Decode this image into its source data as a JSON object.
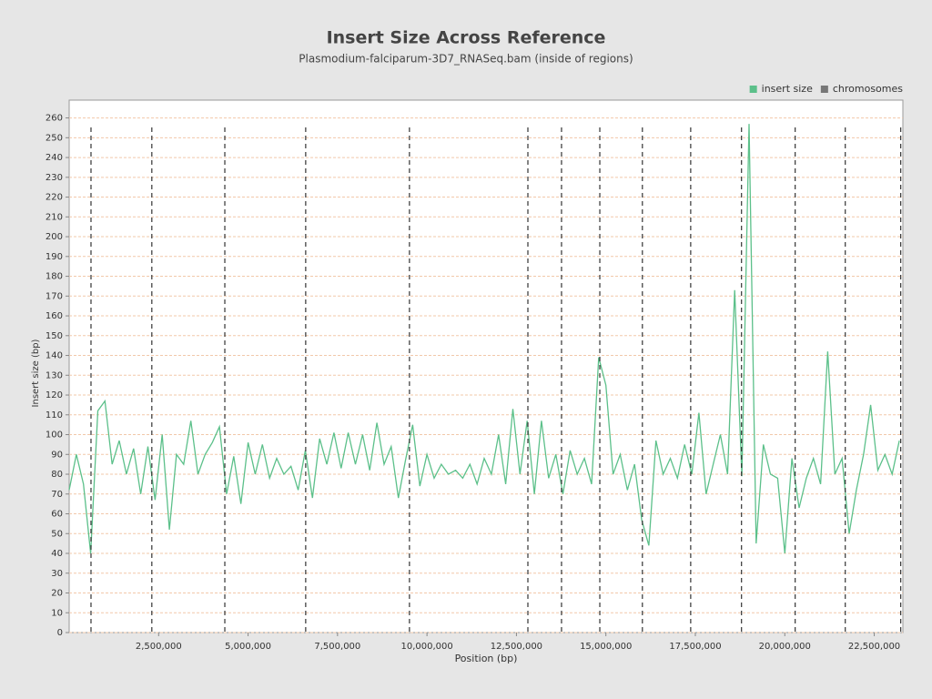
{
  "chart_data": {
    "type": "line",
    "title": "Insert Size Across Reference",
    "subtitle": "Plasmodium-falciparum-3D7_RNASeq.bam (inside of regions)",
    "x_label": "Position (bp)",
    "y_label": "Insert size (bp)",
    "x": [
      0,
      200000,
      400000,
      600000,
      800000,
      1000000,
      1200000,
      1400000,
      1600000,
      1800000,
      2000000,
      2200000,
      2400000,
      2600000,
      2800000,
      3000000,
      3200000,
      3400000,
      3600000,
      3800000,
      4000000,
      4200000,
      4400000,
      4600000,
      4800000,
      5000000,
      5200000,
      5400000,
      5600000,
      5800000,
      6000000,
      6200000,
      6400000,
      6600000,
      6800000,
      7000000,
      7200000,
      7400000,
      7600000,
      7800000,
      8000000,
      8200000,
      8400000,
      8600000,
      8800000,
      9000000,
      9200000,
      9400000,
      9600000,
      9800000,
      10000000,
      10200000,
      10400000,
      10600000,
      10800000,
      11000000,
      11200000,
      11400000,
      11600000,
      11800000,
      12000000,
      12200000,
      12400000,
      12600000,
      12800000,
      13000000,
      13200000,
      13400000,
      13600000,
      13800000,
      14000000,
      14200000,
      14400000,
      14600000,
      14800000,
      15000000,
      15200000,
      15400000,
      15600000,
      15800000,
      16000000,
      16200000,
      16400000,
      16600000,
      16800000,
      17000000,
      17200000,
      17400000,
      17600000,
      17800000,
      18000000,
      18200000,
      18400000,
      18600000,
      18800000,
      19000000,
      19200000,
      19400000,
      19600000,
      19800000,
      20000000,
      20200000,
      20400000,
      20600000,
      20800000,
      21000000,
      21200000,
      21400000,
      21600000,
      21800000,
      22000000,
      22200000,
      22400000,
      22600000,
      22800000,
      23000000,
      23200000
    ],
    "series": [
      {
        "name": "insert size",
        "color": "#5cc08a",
        "values": [
          72,
          90,
          75,
          40,
          112,
          117,
          85,
          97,
          80,
          93,
          70,
          94,
          67,
          100,
          52,
          90,
          85,
          107,
          80,
          90,
          96,
          104,
          70,
          89,
          65,
          96,
          80,
          95,
          78,
          88,
          80,
          84,
          72,
          92,
          68,
          98,
          85,
          101,
          83,
          101,
          85,
          100,
          82,
          106,
          85,
          94,
          68,
          87,
          105,
          74,
          90,
          78,
          85,
          80,
          82,
          78,
          85,
          75,
          88,
          80,
          100,
          75,
          113,
          80,
          107,
          70,
          107,
          78,
          90,
          70,
          92,
          80,
          88,
          75,
          139,
          125,
          80,
          90,
          72,
          85,
          57,
          44,
          97,
          80,
          88,
          78,
          95,
          80,
          111,
          70,
          85,
          100,
          80,
          173,
          79,
          257,
          45,
          95,
          80,
          78,
          40,
          88,
          63,
          78,
          88,
          75,
          142,
          80,
          88,
          50,
          72,
          90,
          115,
          82,
          90,
          80,
          97
        ]
      },
      {
        "name": "chromosomes",
        "color": "#333333",
        "positions": [
          610000,
          2310000,
          4350000,
          6610000,
          9510000,
          12820000,
          13760000,
          14830000,
          16020000,
          17370000,
          18790000,
          20290000,
          21690000,
          23240000
        ]
      }
    ],
    "xlim": [
      0,
      23300000
    ],
    "ylim": [
      0,
      269
    ],
    "xticks": [
      {
        "value": 2500000,
        "label": "2,500,000"
      },
      {
        "value": 5000000,
        "label": "5,000,000"
      },
      {
        "value": 7500000,
        "label": "7,500,000"
      },
      {
        "value": 10000000,
        "label": "10,000,000"
      },
      {
        "value": 12500000,
        "label": "12,500,000"
      },
      {
        "value": 15000000,
        "label": "15,000,000"
      },
      {
        "value": 17500000,
        "label": "17,500,000"
      },
      {
        "value": 20000000,
        "label": "20,000,000"
      },
      {
        "value": 22500000,
        "label": "22,500,000"
      }
    ],
    "yticks": [
      0,
      10,
      20,
      30,
      40,
      50,
      60,
      70,
      80,
      90,
      100,
      110,
      120,
      130,
      140,
      150,
      160,
      170,
      180,
      190,
      200,
      210,
      220,
      230,
      240,
      250,
      260
    ],
    "grid": true,
    "legend": "top-right"
  }
}
